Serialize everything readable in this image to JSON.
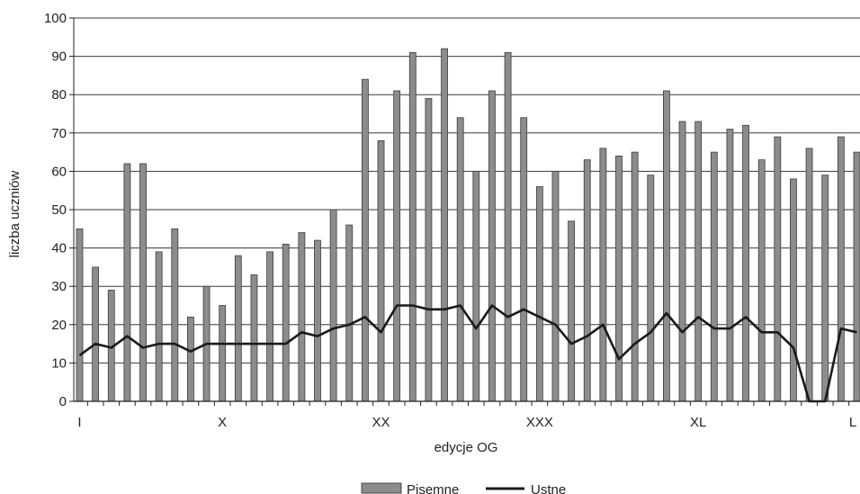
{
  "chart_data": {
    "type": "bar",
    "xlabel": "edycje OG",
    "ylabel": "liczba uczniów",
    "ylim": [
      0,
      100
    ],
    "yticks": [
      0,
      10,
      20,
      30,
      40,
      50,
      60,
      70,
      80,
      90,
      100
    ],
    "x_tick_labels": [
      {
        "index": 0,
        "label": "I"
      },
      {
        "index": 9,
        "label": "X"
      },
      {
        "index": 19,
        "label": "XX"
      },
      {
        "index": 29,
        "label": "XXX"
      },
      {
        "index": 39,
        "label": "XL"
      },
      {
        "index": 49,
        "label": "L"
      }
    ],
    "grid": true,
    "legend_position": "bottom",
    "series": [
      {
        "name": "Pisemne",
        "type": "bar",
        "color": "#8c8c8c",
        "values": [
          45,
          35,
          29,
          62,
          62,
          39,
          45,
          22,
          30,
          25,
          38,
          33,
          39,
          41,
          44,
          42,
          50,
          46,
          84,
          68,
          81,
          91,
          79,
          92,
          74,
          60,
          81,
          91,
          74,
          56,
          60,
          47,
          63,
          66,
          64,
          65,
          59,
          81,
          73,
          73,
          65,
          71,
          72,
          63,
          69,
          58,
          66,
          59,
          69,
          65
        ]
      },
      {
        "name": "Ustne",
        "type": "line",
        "color": "#1a1a1a",
        "values": [
          12,
          15,
          14,
          17,
          14,
          15,
          15,
          13,
          15,
          15,
          15,
          15,
          15,
          15,
          18,
          17,
          19,
          20,
          22,
          18,
          25,
          25,
          24,
          24,
          25,
          19,
          25,
          22,
          24,
          22,
          20,
          15,
          17,
          20,
          11,
          15,
          18,
          23,
          18,
          22,
          19,
          19,
          22,
          18,
          18,
          14,
          0,
          0,
          19,
          18
        ]
      }
    ]
  }
}
